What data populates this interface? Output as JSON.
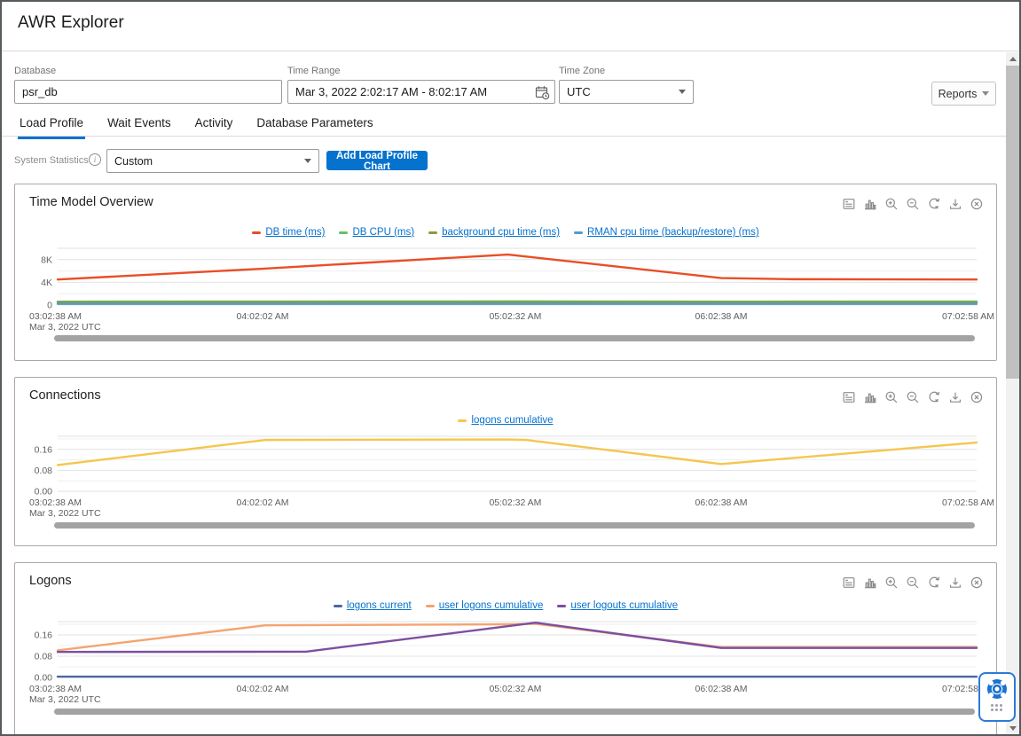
{
  "window": {
    "title": "AWR Explorer"
  },
  "filters": {
    "database": {
      "label": "Database",
      "value": "psr_db"
    },
    "time_range": {
      "label": "Time Range",
      "value": "Mar 3, 2022 2:02:17 AM - 8:02:17 AM"
    },
    "time_zone": {
      "label": "Time Zone",
      "value": "UTC"
    },
    "reports_button_label": "Reports"
  },
  "tabs": [
    {
      "label": "Load Profile",
      "active": true
    },
    {
      "label": "Wait Events",
      "active": false
    },
    {
      "label": "Activity",
      "active": false
    },
    {
      "label": "Database Parameters",
      "active": false
    }
  ],
  "controls": {
    "system_statistics_label": "System Statistics",
    "statistics_dropdown_value": "Custom",
    "add_chart_button_label": "Add Load Profile Chart"
  },
  "panel_toolbar_icons": [
    "data-table-icon",
    "bar-chart-icon",
    "zoom-in-icon",
    "zoom-out-icon",
    "reset-zoom-icon",
    "download-icon",
    "close-icon"
  ],
  "accent_colors": {
    "primary_blue": "#0572ce",
    "link_blue": "#0572ce",
    "tab_underline": "#0572ce"
  },
  "chart_data": [
    {
      "type": "line",
      "title": "Time Model Overview",
      "x_tick_labels": [
        "03:02:38 AM",
        "04:02:02 AM",
        "05:02:32 AM",
        "06:02:38 AM",
        "07:02:58 AM"
      ],
      "x_tick_positions": [
        0,
        0.223,
        0.498,
        0.722,
        0.992
      ],
      "x_sub_label": "Mar 3, 2022 UTC",
      "y_ticks": [
        {
          "value": 0,
          "label": "0"
        },
        {
          "value": 4000,
          "label": "4K"
        },
        {
          "value": 8000,
          "label": "8K"
        }
      ],
      "ylim": [
        0,
        10000
      ],
      "grid": true,
      "legend_position": "top-center",
      "series": [
        {
          "name": "DB time (ms)",
          "color": "#e94e25",
          "points": [
            [
              0,
              4500
            ],
            [
              0.223,
              6400
            ],
            [
              0.49,
              8900
            ],
            [
              0.722,
              4750
            ],
            [
              0.8,
              4550
            ],
            [
              1,
              4500
            ]
          ]
        },
        {
          "name": "DB CPU (ms)",
          "color": "#66bf6b",
          "points": [
            [
              0,
              600
            ],
            [
              0.25,
              620
            ],
            [
              0.5,
              650
            ],
            [
              0.75,
              600
            ],
            [
              1,
              620
            ]
          ]
        },
        {
          "name": "background cpu time (ms)",
          "color": "#8b9a3d",
          "points": [
            [
              0,
              480
            ],
            [
              0.5,
              500
            ],
            [
              1,
              480
            ]
          ]
        },
        {
          "name": "RMAN cpu time (backup/restore) (ms)",
          "color": "#4f9dd2",
          "points": [
            [
              0,
              200
            ],
            [
              0.5,
              210
            ],
            [
              1,
              200
            ]
          ]
        }
      ]
    },
    {
      "type": "line",
      "title": "Connections",
      "x_tick_labels": [
        "03:02:38 AM",
        "04:02:02 AM",
        "05:02:32 AM",
        "06:02:38 AM",
        "07:02:58 AM"
      ],
      "x_tick_positions": [
        0,
        0.223,
        0.498,
        0.722,
        0.992
      ],
      "x_sub_label": "Mar 3, 2022 UTC",
      "y_ticks": [
        {
          "value": 0,
          "label": "0.00"
        },
        {
          "value": 0.08,
          "label": "0.08"
        },
        {
          "value": 0.16,
          "label": "0.16"
        }
      ],
      "ylim": [
        0,
        0.21
      ],
      "grid": true,
      "legend_position": "top-center",
      "series": [
        {
          "name": "logons cumulative",
          "color": "#f5c64f",
          "points": [
            [
              0,
              0.1
            ],
            [
              0.226,
              0.196
            ],
            [
              0.49,
              0.198
            ],
            [
              0.51,
              0.196
            ],
            [
              0.722,
              0.104
            ],
            [
              1,
              0.186
            ]
          ]
        }
      ]
    },
    {
      "type": "line",
      "title": "Logons",
      "x_tick_labels": [
        "03:02:38 AM",
        "04:02:02 AM",
        "05:02:32 AM",
        "06:02:38 AM",
        "07:02:58 AM"
      ],
      "x_tick_positions": [
        0,
        0.223,
        0.498,
        0.722,
        0.992
      ],
      "x_sub_label": "Mar 3, 2022 UTC",
      "y_ticks": [
        {
          "value": 0,
          "label": "0.00"
        },
        {
          "value": 0.08,
          "label": "0.08"
        },
        {
          "value": 0.16,
          "label": "0.16"
        }
      ],
      "ylim": [
        0,
        0.21
      ],
      "grid": true,
      "legend_position": "top-center",
      "series": [
        {
          "name": "logons current",
          "color": "#4d66a4",
          "points": [
            [
              0,
              0.003
            ],
            [
              1,
              0.003
            ]
          ]
        },
        {
          "name": "user logons cumulative",
          "color": "#f4a470",
          "points": [
            [
              0,
              0.102
            ],
            [
              0.226,
              0.196
            ],
            [
              0.49,
              0.2
            ],
            [
              0.52,
              0.202
            ],
            [
              0.722,
              0.114
            ],
            [
              1,
              0.114
            ]
          ]
        },
        {
          "name": "user logouts cumulative",
          "color": "#7d4fa0",
          "points": [
            [
              0,
              0.096
            ],
            [
              0.27,
              0.097
            ],
            [
              0.52,
              0.206
            ],
            [
              0.722,
              0.111
            ],
            [
              1,
              0.111
            ]
          ]
        }
      ]
    }
  ]
}
